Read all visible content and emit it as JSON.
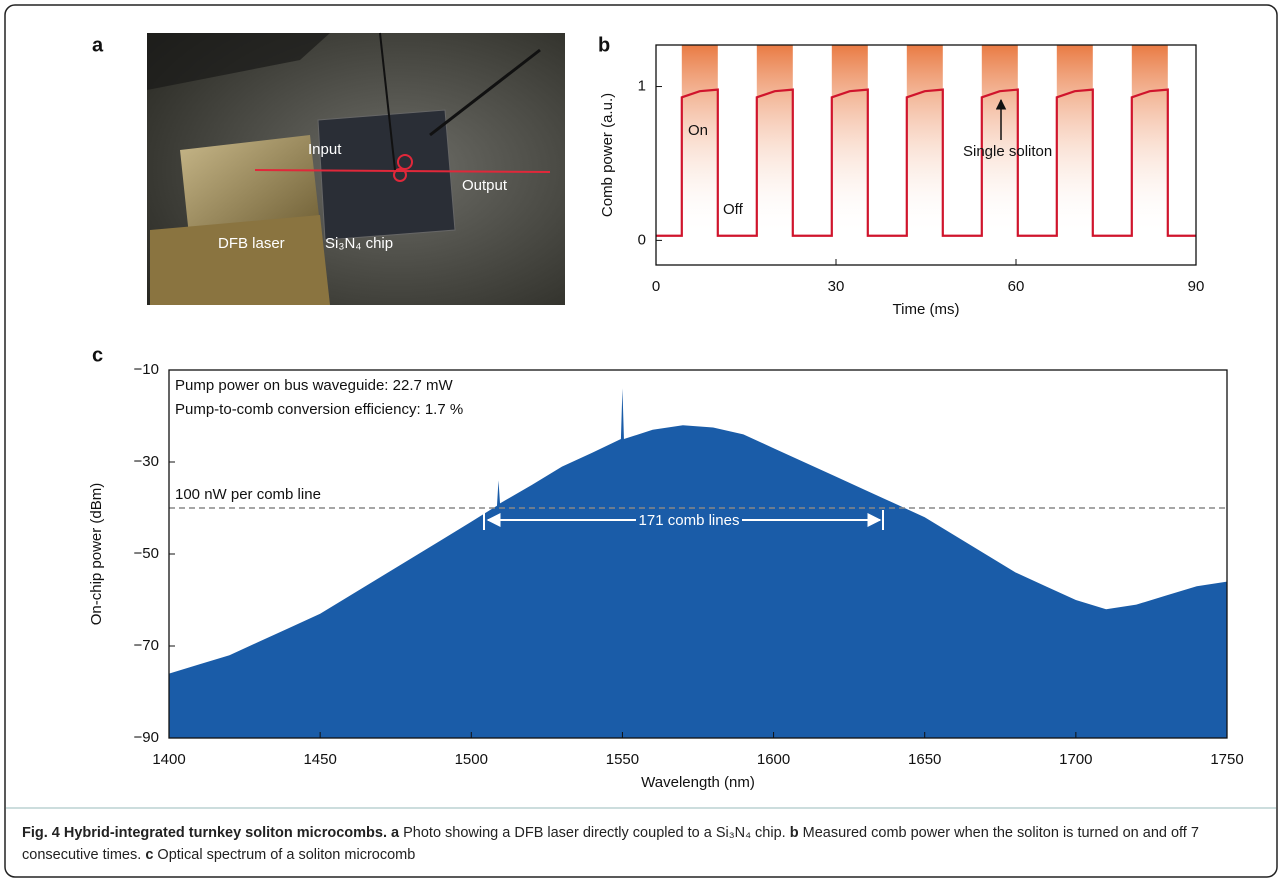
{
  "panel_a": {
    "label": "a",
    "annotations": [
      "Input",
      "Output",
      "DFB laser",
      "Si₃N₄ chip"
    ]
  },
  "chart_data": [
    {
      "type": "line",
      "panel": "b",
      "x_label": "Time (ms)",
      "y_label": "Comb power (a.u.)",
      "color": "#d0142c",
      "x": [
        0,
        4.3,
        4.3,
        7.3,
        10.3,
        10.3,
        16.8,
        16.8,
        19.8,
        22.8,
        22.8,
        29.3,
        29.3,
        32.3,
        35.3,
        35.3,
        41.8,
        41.8,
        44.8,
        47.8,
        47.8,
        54.3,
        54.3,
        57.3,
        60.3,
        60.3,
        66.8,
        66.8,
        69.8,
        72.8,
        72.8,
        79.3,
        79.3,
        82.3,
        85.3,
        85.3,
        90
      ],
      "values": [
        0.03,
        0.03,
        0.93,
        0.97,
        0.98,
        0.03,
        0.03,
        0.93,
        0.97,
        0.98,
        0.03,
        0.03,
        0.93,
        0.97,
        0.98,
        0.03,
        0.03,
        0.93,
        0.97,
        0.98,
        0.03,
        0.03,
        0.93,
        0.97,
        0.98,
        0.03,
        0.03,
        0.93,
        0.97,
        0.98,
        0.03,
        0.03,
        0.93,
        0.97,
        0.98,
        0.03,
        0.03
      ],
      "xlim": [
        0,
        90
      ],
      "xticks": [
        0,
        30,
        60,
        90
      ],
      "ylim": [
        -0.16,
        1.27
      ],
      "yticks": [
        0,
        1
      ],
      "annotations": [
        "On",
        "Off",
        "Single soliton"
      ]
    },
    {
      "type": "area",
      "panel": "c",
      "x_label": "Wavelength (nm)",
      "y_label": "On-chip power (dBm)",
      "color": "#1a5ca8",
      "x": [
        1400,
        1410,
        1420,
        1430,
        1440,
        1450,
        1460,
        1470,
        1480,
        1490,
        1500,
        1508.5,
        1509,
        1509.5,
        1520,
        1530,
        1540,
        1549.5,
        1550,
        1550.5,
        1560,
        1570,
        1580,
        1590,
        1600,
        1610,
        1620,
        1630,
        1640,
        1650,
        1660,
        1670,
        1680,
        1690,
        1700,
        1710,
        1720,
        1730,
        1740,
        1750
      ],
      "values": [
        -76,
        -74,
        -72,
        -69,
        -66,
        -63,
        -59,
        -55,
        -51,
        -47,
        -43,
        -39.5,
        -34,
        -39,
        -35,
        -31,
        -28,
        -25,
        -14,
        -25,
        -23,
        -22,
        -22.5,
        -24,
        -27,
        -30,
        -33,
        -36,
        -39,
        -42,
        -46,
        -50,
        -54,
        -57,
        -60,
        -62,
        -61,
        -59,
        -57,
        -56
      ],
      "xlim": [
        1400,
        1750
      ],
      "xticks": [
        1400,
        1450,
        1500,
        1550,
        1600,
        1650,
        1700,
        1750
      ],
      "ylim": [
        -90,
        -10
      ],
      "yticks": [
        {
          "value": -10,
          "label": "−10"
        },
        {
          "value": -30,
          "label": "−30"
        },
        {
          "value": -50,
          "label": "−50"
        },
        {
          "value": -70,
          "label": "−70"
        },
        {
          "value": -90,
          "label": "−90"
        }
      ],
      "reference_line": {
        "value": -40,
        "label": "100 nW per comb line"
      },
      "annotations": [
        "Pump power on bus waveguide: 22.7 mW",
        "Pump-to-comb conversion efficiency: 1.7 %",
        "171 comb lines"
      ]
    }
  ],
  "caption": {
    "title": "Fig. 4 Hybrid-integrated turnkey soliton microcombs.",
    "parts": [
      {
        "label": "a",
        "text": "Photo showing a DFB laser directly coupled to a Si₃N₄ chip."
      },
      {
        "label": "b",
        "text": "Measured comb power when the soliton is turned on and off 7 consecutive times."
      },
      {
        "label": "c",
        "text": "Optical spectrum of a soliton microcomb"
      }
    ]
  }
}
